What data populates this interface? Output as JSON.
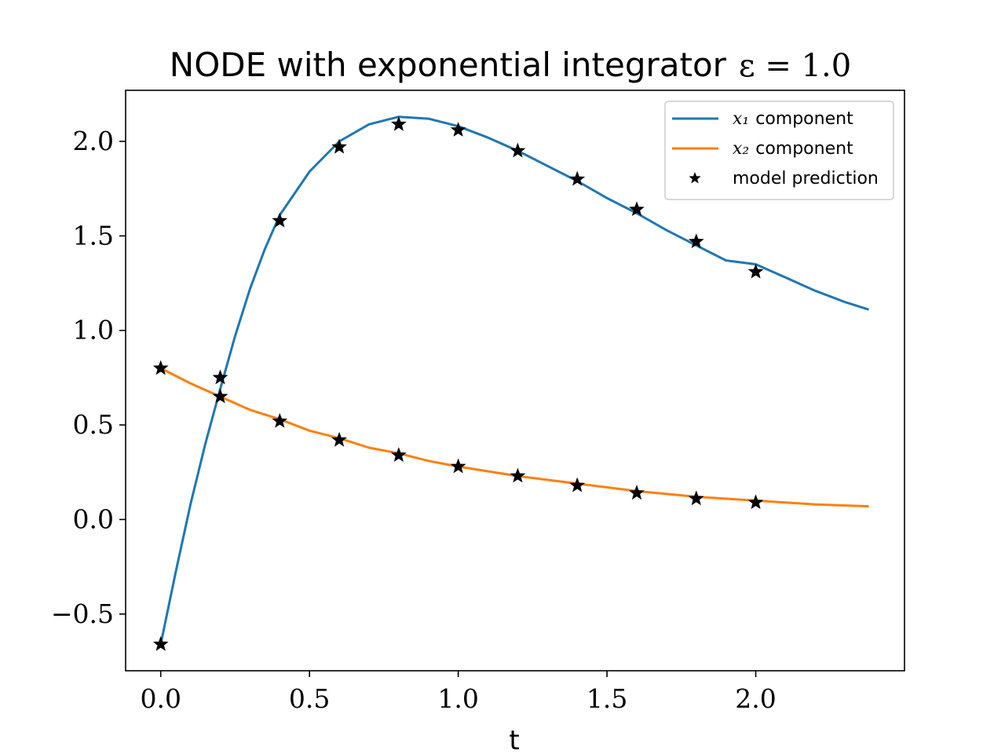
{
  "chart_data": {
    "type": "line",
    "title": "NODE with exponential integrator",
    "title_math": "ε = 1.0",
    "xlabel": "t",
    "ylabel": "",
    "xlim": [
      -0.118,
      2.5
    ],
    "ylim": [
      -0.8,
      2.27
    ],
    "xticks": [
      0.0,
      0.5,
      1.0,
      1.5,
      2.0
    ],
    "xtick_labels": [
      "0.0",
      "0.5",
      "1.0",
      "1.5",
      "2.0"
    ],
    "yticks": [
      -0.5,
      0.0,
      0.5,
      1.0,
      1.5,
      2.0
    ],
    "ytick_labels": [
      "−0.5",
      "0.0",
      "0.5",
      "1.0",
      "1.5",
      "2.0"
    ],
    "grid": false,
    "legend_position": "top-right",
    "series": [
      {
        "name": "component",
        "name_math": "x₁",
        "type": "line",
        "color": "#1f77b4",
        "x": [
          0.0,
          0.05,
          0.1,
          0.15,
          0.2,
          0.25,
          0.3,
          0.35,
          0.4,
          0.5,
          0.6,
          0.7,
          0.8,
          0.9,
          1.0,
          1.1,
          1.2,
          1.3,
          1.4,
          1.5,
          1.6,
          1.7,
          1.8,
          1.9,
          2.0,
          2.1,
          2.2,
          2.3,
          2.38
        ],
        "y": [
          -0.66,
          -0.28,
          0.08,
          0.4,
          0.69,
          0.97,
          1.22,
          1.43,
          1.61,
          1.84,
          2.0,
          2.09,
          2.13,
          2.12,
          2.08,
          2.02,
          1.95,
          1.87,
          1.79,
          1.7,
          1.62,
          1.53,
          1.45,
          1.37,
          1.35,
          1.28,
          1.21,
          1.15,
          1.11
        ]
      },
      {
        "name": "component",
        "name_math": "x₂",
        "type": "line",
        "color": "#ff7f0e",
        "x": [
          0.0,
          0.1,
          0.2,
          0.3,
          0.4,
          0.5,
          0.6,
          0.7,
          0.8,
          0.9,
          1.0,
          1.2,
          1.4,
          1.6,
          1.8,
          2.0,
          2.2,
          2.38
        ],
        "y": [
          0.8,
          0.72,
          0.65,
          0.58,
          0.53,
          0.47,
          0.43,
          0.38,
          0.35,
          0.31,
          0.28,
          0.23,
          0.19,
          0.15,
          0.12,
          0.1,
          0.08,
          0.07
        ]
      },
      {
        "name": "model prediction",
        "type": "scatter",
        "marker": "star",
        "color": "#000000",
        "x": [
          0.0,
          0.2,
          0.4,
          0.6,
          0.8,
          1.0,
          1.2,
          1.4,
          1.6,
          1.8,
          2.0,
          0.0,
          0.2,
          0.4,
          0.6,
          0.8,
          1.0,
          1.2,
          1.4,
          1.6,
          1.8,
          2.0
        ],
        "y": [
          -0.66,
          0.75,
          1.58,
          1.97,
          2.09,
          2.06,
          1.95,
          1.8,
          1.64,
          1.47,
          1.31,
          0.8,
          0.65,
          0.52,
          0.42,
          0.34,
          0.28,
          0.23,
          0.18,
          0.14,
          0.11,
          0.09
        ]
      }
    ]
  }
}
